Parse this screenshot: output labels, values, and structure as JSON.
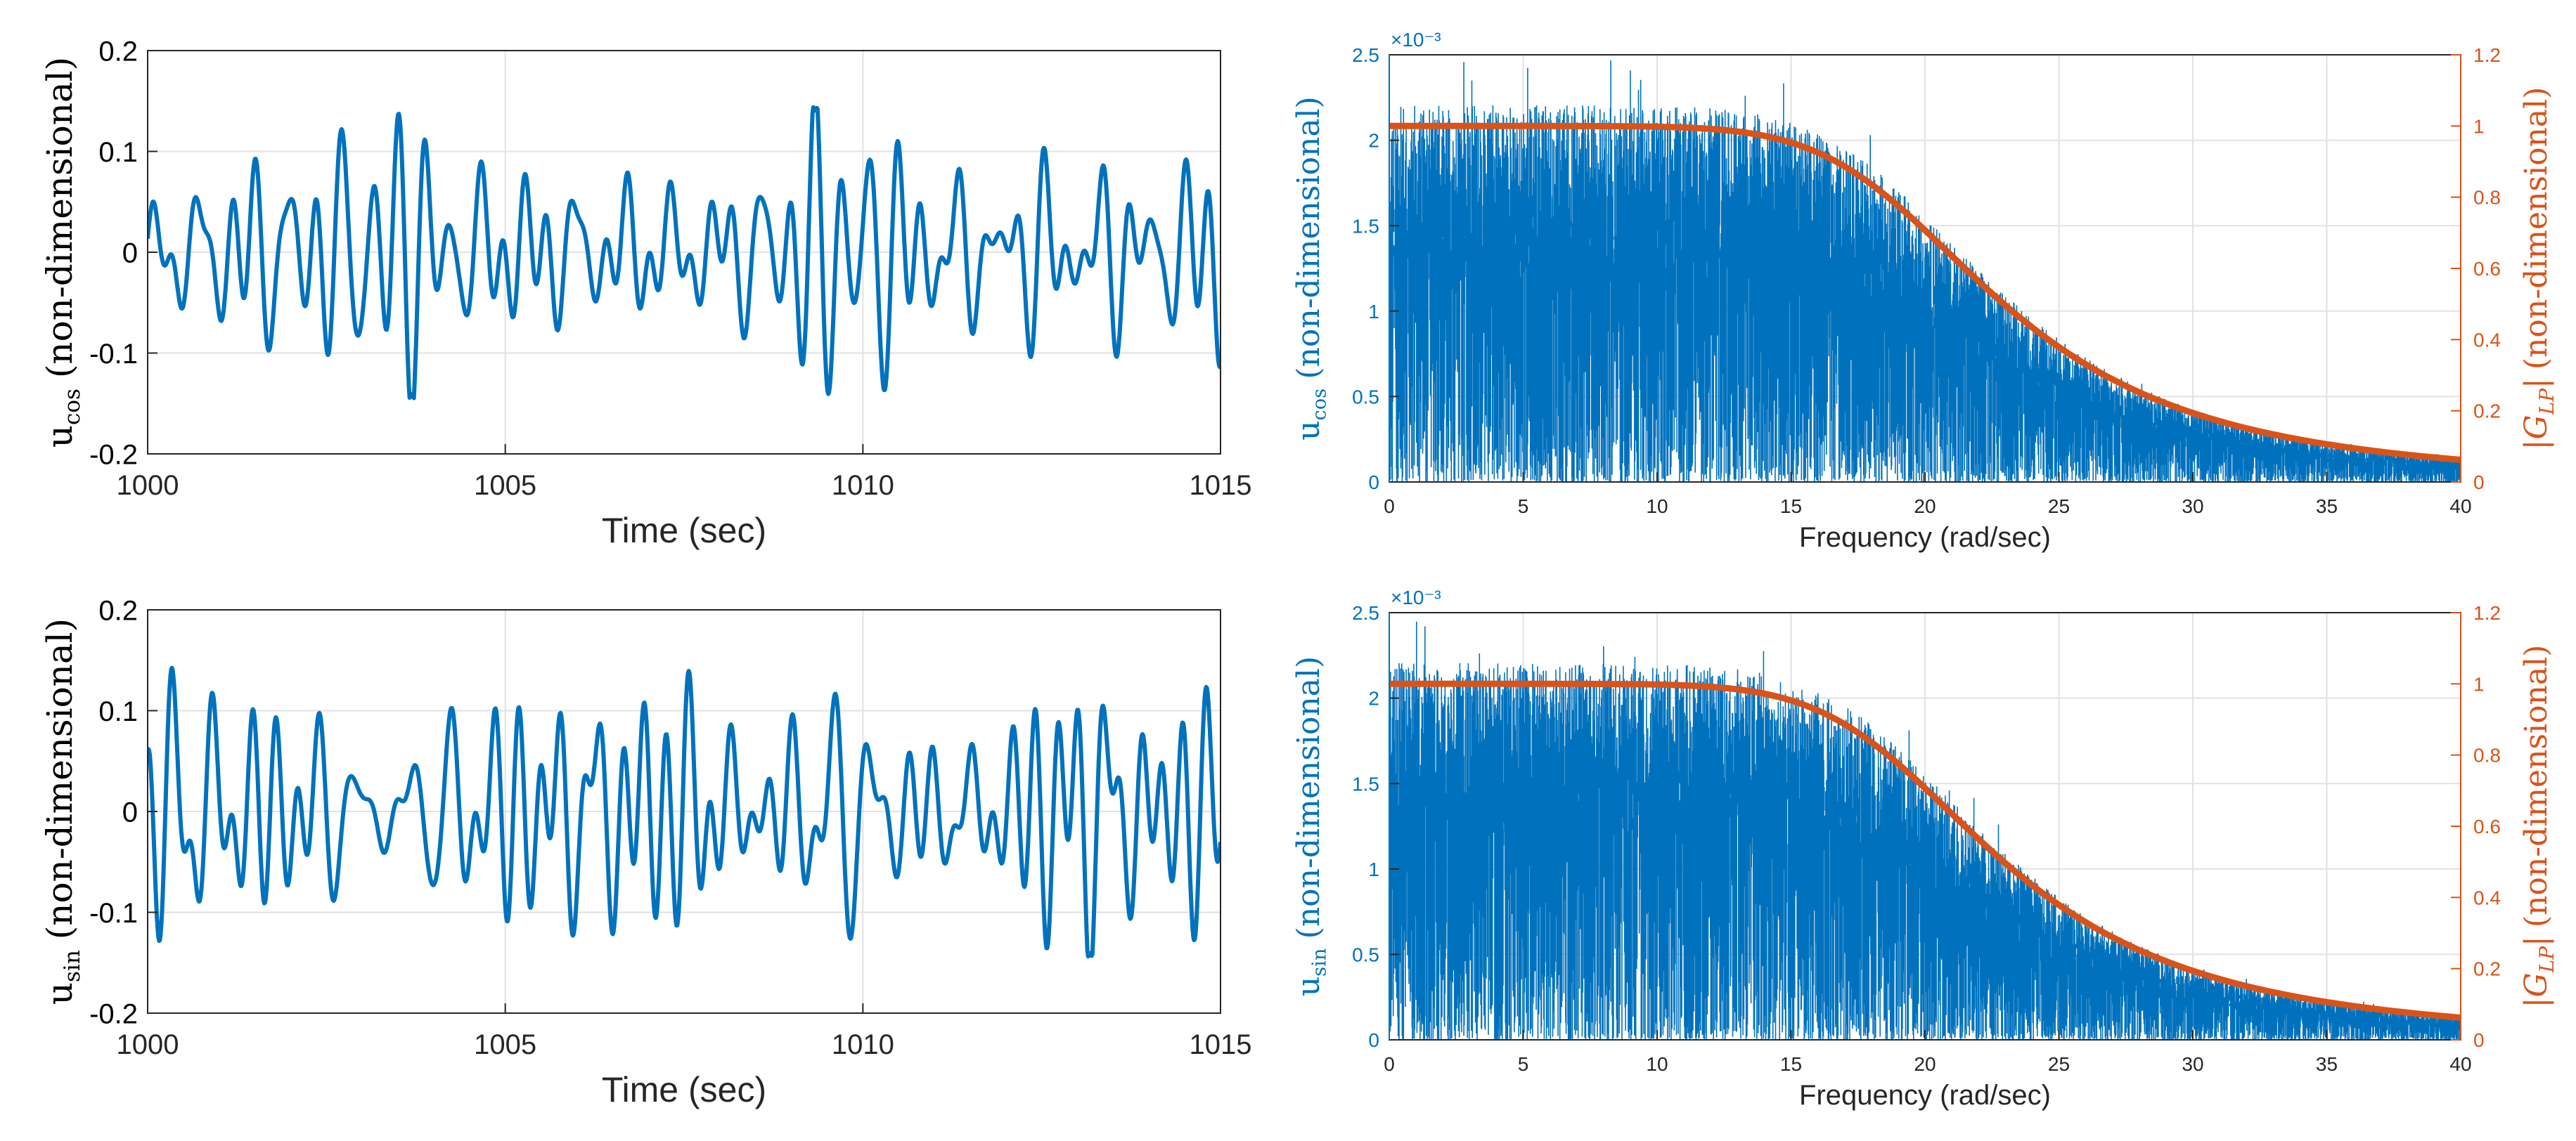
{
  "chart_data": [
    {
      "type": "line",
      "id": "ucos-time",
      "title": "",
      "xlabel": "Time (sec)",
      "ylabel": "(non-dimensional)",
      "ylabel_symbol": "u",
      "ylabel_sub": "cos",
      "xlim": [
        1000,
        1015
      ],
      "ylim": [
        -0.2,
        0.2
      ],
      "xticks": [
        1000,
        1005,
        1010,
        1015
      ],
      "yticks": [
        -0.2,
        -0.1,
        0,
        0.1,
        0.2
      ],
      "xtick_labels": [
        "1000",
        "1005",
        "1010",
        "1015"
      ],
      "ytick_labels": [
        "-0.2",
        "-0.1",
        "0",
        "0.1",
        "0.2"
      ],
      "grid": true,
      "series": [
        {
          "name": "u_cos",
          "color": "#0072BD",
          "generator": "signal",
          "seed": 1,
          "amplitude": 0.145,
          "n_points": 1500
        }
      ]
    },
    {
      "type": "line",
      "id": "ucos-freq",
      "title": "",
      "xlabel": "Frequency (rad/sec)",
      "ylabel": "(non-dimensional)",
      "ylabel_symbol": "u",
      "ylabel_sub": "cos",
      "ylabel_right": "(non-dimensional)",
      "ylabel_right_symbol": "|G",
      "ylabel_right_sub": "LP",
      "ylabel_right_close": "|",
      "exponent": "×10⁻³",
      "xlim": [
        0,
        40
      ],
      "ylim": [
        0,
        2.5
      ],
      "ylim_right": [
        0,
        1.2
      ],
      "xticks": [
        0,
        5,
        10,
        15,
        20,
        25,
        30,
        35,
        40
      ],
      "yticks": [
        0,
        0.5,
        1,
        1.5,
        2,
        2.5
      ],
      "yticks_right": [
        0,
        0.2,
        0.4,
        0.6,
        0.8,
        1,
        1.2
      ],
      "xtick_labels": [
        "0",
        "5",
        "10",
        "15",
        "20",
        "25",
        "30",
        "35",
        "40"
      ],
      "ytick_labels": [
        "0",
        "0.5",
        "1",
        "1.5",
        "2",
        "2.5"
      ],
      "ytick_labels_right": [
        "0",
        "0.2",
        "0.4",
        "0.6",
        "0.8",
        "1",
        "1.2"
      ],
      "grid": true,
      "colors": {
        "left": "#0072BD",
        "right": "#D95319"
      },
      "series": [
        {
          "name": "spectrum",
          "axis": "left",
          "color": "#0072BD",
          "generator": "spectrum",
          "seed": 11,
          "n_points": 2400,
          "peak": 2.1
        },
        {
          "name": "|G_LP|",
          "axis": "right",
          "color": "#D95319",
          "generator": "lowpass",
          "cutoff": 20,
          "order": 4,
          "gain": 1.0
        }
      ]
    },
    {
      "type": "line",
      "id": "usin-time",
      "title": "",
      "xlabel": "Time (sec)",
      "ylabel": "(non-dimensional)",
      "ylabel_symbol": "u",
      "ylabel_sub": "sin",
      "xlim": [
        1000,
        1015
      ],
      "ylim": [
        -0.2,
        0.2
      ],
      "xticks": [
        1000,
        1005,
        1010,
        1015
      ],
      "yticks": [
        -0.2,
        -0.1,
        0,
        0.1,
        0.2
      ],
      "xtick_labels": [
        "1000",
        "1005",
        "1010",
        "1015"
      ],
      "ytick_labels": [
        "-0.2",
        "-0.1",
        "0",
        "0.1",
        "0.2"
      ],
      "grid": true,
      "series": [
        {
          "name": "u_sin",
          "color": "#0072BD",
          "generator": "signal",
          "seed": 7,
          "amplitude": 0.145,
          "n_points": 1500
        }
      ]
    },
    {
      "type": "line",
      "id": "usin-freq",
      "title": "",
      "xlabel": "Frequency (rad/sec)",
      "ylabel": "(non-dimensional)",
      "ylabel_symbol": "u",
      "ylabel_sub": "sin",
      "ylabel_right": "(non-dimensional)",
      "ylabel_right_symbol": "|G",
      "ylabel_right_sub": "LP",
      "ylabel_right_close": "|",
      "exponent": "×10⁻³",
      "xlim": [
        0,
        40
      ],
      "ylim": [
        0,
        2.5
      ],
      "ylim_right": [
        0,
        1.2
      ],
      "xticks": [
        0,
        5,
        10,
        15,
        20,
        25,
        30,
        35,
        40
      ],
      "yticks": [
        0,
        0.5,
        1,
        1.5,
        2,
        2.5
      ],
      "yticks_right": [
        0,
        0.2,
        0.4,
        0.6,
        0.8,
        1,
        1.2
      ],
      "xtick_labels": [
        "0",
        "5",
        "10",
        "15",
        "20",
        "25",
        "30",
        "35",
        "40"
      ],
      "ytick_labels": [
        "0",
        "0.5",
        "1",
        "1.5",
        "2",
        "2.5"
      ],
      "ytick_labels_right": [
        "0",
        "0.2",
        "0.4",
        "0.6",
        "0.8",
        "1",
        "1.2"
      ],
      "grid": true,
      "colors": {
        "left": "#0072BD",
        "right": "#D95319"
      },
      "series": [
        {
          "name": "spectrum",
          "axis": "left",
          "color": "#0072BD",
          "generator": "spectrum",
          "seed": 23,
          "n_points": 2400,
          "peak": 2.1
        },
        {
          "name": "|G_LP|",
          "axis": "right",
          "color": "#D95319",
          "generator": "lowpass",
          "cutoff": 20,
          "order": 4,
          "gain": 1.0
        }
      ]
    }
  ]
}
